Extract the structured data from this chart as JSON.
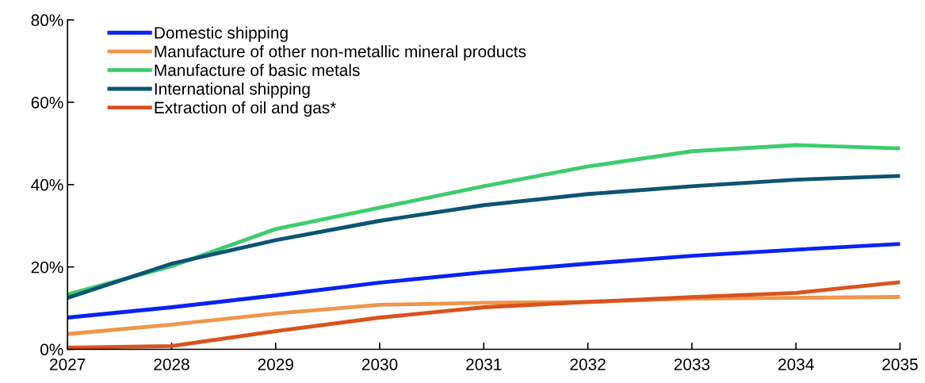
{
  "chart_data": {
    "type": "line",
    "x": [
      2027,
      2028,
      2029,
      2030,
      2031,
      2032,
      2033,
      2034,
      2035
    ],
    "xlim": [
      2027,
      2035
    ],
    "xticks": [
      2027,
      2028,
      2029,
      2030,
      2031,
      2032,
      2033,
      2034,
      2035
    ],
    "ylim": [
      0,
      80
    ],
    "yticks": [
      {
        "value": 0,
        "label": "0%"
      },
      {
        "value": 20,
        "label": "20%"
      },
      {
        "value": 40,
        "label": "40%"
      },
      {
        "value": 60,
        "label": "60%"
      },
      {
        "value": 80,
        "label": "80%"
      }
    ],
    "grid": false,
    "legend": "top left",
    "marker": "none",
    "line_style": "solid",
    "series": [
      {
        "name": "Domestic shipping",
        "color": "#0a22f5",
        "values": [
          7.7,
          10.2,
          13.1,
          16.2,
          18.7,
          20.8,
          22.7,
          24.2,
          25.6
        ]
      },
      {
        "name": "Manufacture of other non-metallic mineral products",
        "color": "#ee964c",
        "values": [
          3.7,
          6.0,
          8.7,
          10.8,
          11.3,
          11.5,
          12.3,
          12.5,
          12.7
        ]
      },
      {
        "name": "Manufacture of basic metals",
        "color": "#3ecc6e",
        "values": [
          13.3,
          20.2,
          29.2,
          34.4,
          39.6,
          44.4,
          48.1,
          49.6,
          48.8
        ]
      },
      {
        "name": "International shipping",
        "color": "#0c5472",
        "values": [
          12.5,
          20.8,
          26.5,
          31.2,
          35.0,
          37.7,
          39.6,
          41.2,
          42.1
        ]
      },
      {
        "name": "Extraction of oil and gas*",
        "color": "#d9531e",
        "values": [
          0.4,
          0.8,
          4.4,
          7.7,
          10.2,
          11.5,
          12.7,
          13.7,
          16.3
        ]
      }
    ]
  }
}
